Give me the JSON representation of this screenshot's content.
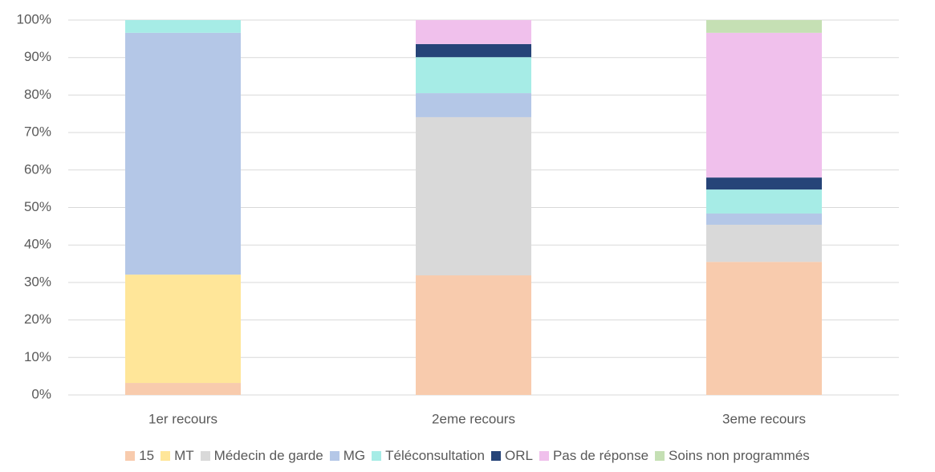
{
  "chart_data": {
    "type": "stacked_bar",
    "categories": [
      "1er recours",
      "2eme recours",
      "3eme recours"
    ],
    "series": [
      {
        "name": "15",
        "color": "#f8cbad",
        "values": [
          3.2,
          31.9,
          35.5
        ]
      },
      {
        "name": "MT",
        "color": "#ffe699",
        "values": [
          28.9,
          0,
          0
        ]
      },
      {
        "name": "Médecin de garde",
        "color": "#d9d9d9",
        "values": [
          0,
          42.2,
          9.9
        ]
      },
      {
        "name": "MG",
        "color": "#b4c7e7",
        "values": [
          64.5,
          6.4,
          3.0
        ]
      },
      {
        "name": "Téléconsultation",
        "color": "#a6ece6",
        "values": [
          3.4,
          9.6,
          6.4
        ]
      },
      {
        "name": "ORL",
        "color": "#264478",
        "values": [
          0,
          3.5,
          3.2
        ]
      },
      {
        "name": "Pas de réponse",
        "color": "#f0c0ec",
        "values": [
          0,
          6.4,
          38.6
        ]
      },
      {
        "name": "Soins non programmés",
        "color": "#c5e0b4",
        "values": [
          0,
          0,
          3.4
        ]
      }
    ],
    "ylim": [
      0,
      100
    ],
    "yticks": [
      {
        "value": 0,
        "label": "0%"
      },
      {
        "value": 10,
        "label": "10%"
      },
      {
        "value": 20,
        "label": "20%"
      },
      {
        "value": 30,
        "label": "30%"
      },
      {
        "value": 40,
        "label": "40%"
      },
      {
        "value": 50,
        "label": "50%"
      },
      {
        "value": 60,
        "label": "60%"
      },
      {
        "value": 70,
        "label": "70%"
      },
      {
        "value": 80,
        "label": "80%"
      },
      {
        "value": 90,
        "label": "90%"
      },
      {
        "value": 100,
        "label": "100%"
      }
    ],
    "grid": true,
    "legend": "bottom"
  }
}
